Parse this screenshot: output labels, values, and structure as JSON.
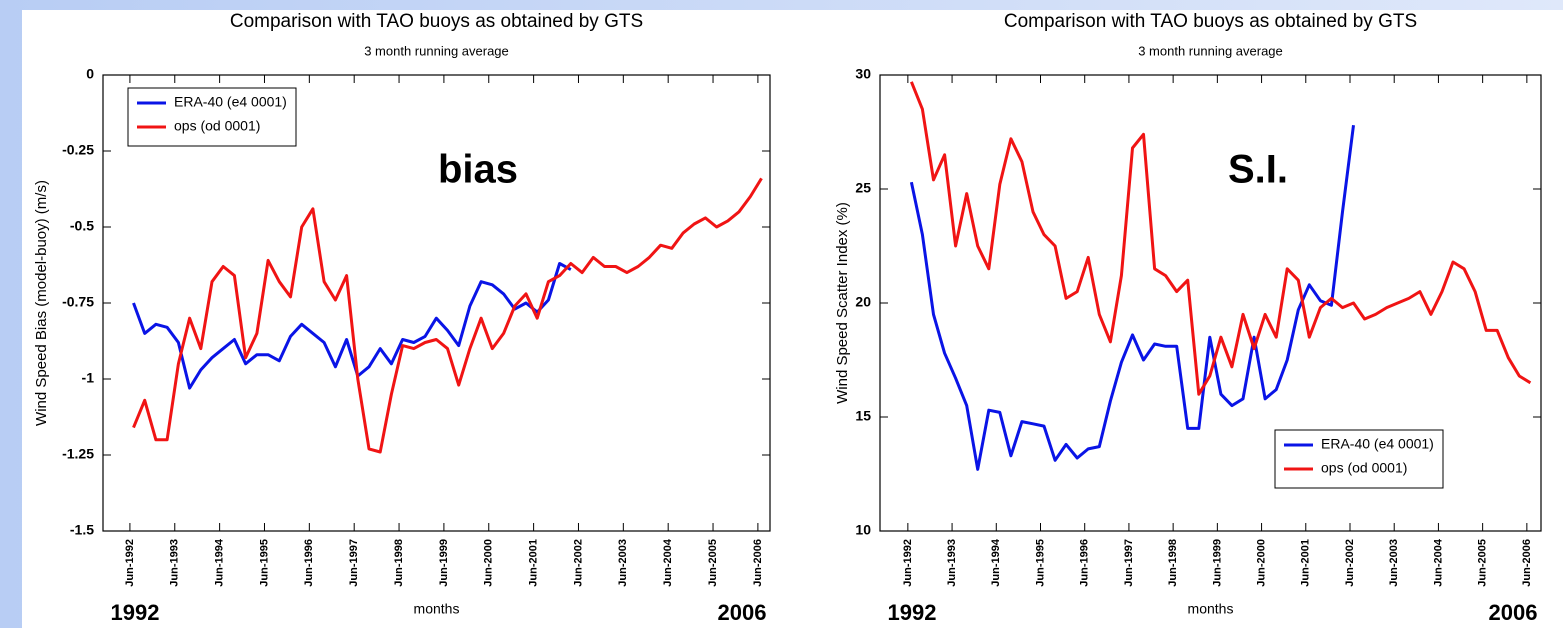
{
  "chart_data": [
    {
      "type": "line",
      "title": "Comparison with TAO buoys as obtained by GTS",
      "subtitle": "3 month running average",
      "y_label": "Wind Speed Bias (model-buoy) (m/s)",
      "x_label": "months",
      "annotation": "bias",
      "range_labels": [
        "1992",
        "2006"
      ],
      "legend": "upper left",
      "grid": false,
      "xlim": [
        1991.82,
        2006.69
      ],
      "ylim": [
        -1.5,
        0
      ],
      "yticks": [
        -1.5,
        -1.25,
        -1,
        -0.75,
        -0.5,
        -0.25,
        0
      ],
      "xticks": [
        {
          "value": 1992.42,
          "label": "Jun-1992"
        },
        {
          "value": 1993.42,
          "label": "Jun-1993"
        },
        {
          "value": 1994.42,
          "label": "Jun-1994"
        },
        {
          "value": 1995.42,
          "label": "Jun-1995"
        },
        {
          "value": 1996.42,
          "label": "Jun-1996"
        },
        {
          "value": 1997.42,
          "label": "Jun-1997"
        },
        {
          "value": 1998.42,
          "label": "Jun-1998"
        },
        {
          "value": 1999.42,
          "label": "Jun-1999"
        },
        {
          "value": 2000.42,
          "label": "Jun-2000"
        },
        {
          "value": 2001.42,
          "label": "Jun-2001"
        },
        {
          "value": 2002.42,
          "label": "Jun-2002"
        },
        {
          "value": 2003.42,
          "label": "Jun-2003"
        },
        {
          "value": 2004.42,
          "label": "Jun-2004"
        },
        {
          "value": 2005.42,
          "label": "Jun-2005"
        },
        {
          "value": 2006.42,
          "label": "Jun-2006"
        }
      ],
      "x": [
        1992.5,
        1992.75,
        1993,
        1993.25,
        1993.5,
        1993.75,
        1994,
        1994.25,
        1994.5,
        1994.75,
        1995,
        1995.25,
        1995.5,
        1995.75,
        1996,
        1996.25,
        1996.5,
        1996.75,
        1997,
        1997.25,
        1997.5,
        1997.75,
        1998,
        1998.25,
        1998.5,
        1998.75,
        1999,
        1999.25,
        1999.5,
        1999.75,
        2000,
        2000.25,
        2000.5,
        2000.75,
        2001,
        2001.25,
        2001.5,
        2001.75,
        2002,
        2002.25,
        2002.5,
        2002.75,
        2003,
        2003.25,
        2003.5,
        2003.75,
        2004,
        2004.25,
        2004.5,
        2004.75,
        2005,
        2005.25,
        2005.5,
        2005.75,
        2006,
        2006.25,
        2006.5
      ],
      "series": [
        {
          "name": "ERA-40 (e4 0001)",
          "color": "#0a14e6",
          "values": [
            -0.75,
            -0.85,
            -0.82,
            -0.83,
            -0.88,
            -1.03,
            -0.97,
            -0.93,
            -0.9,
            -0.87,
            -0.95,
            -0.92,
            -0.92,
            -0.94,
            -0.86,
            -0.82,
            -0.85,
            -0.88,
            -0.96,
            -0.87,
            -0.99,
            -0.96,
            -0.9,
            -0.95,
            -0.87,
            -0.88,
            -0.86,
            -0.8,
            -0.84,
            -0.89,
            -0.76,
            -0.68,
            -0.69,
            -0.72,
            -0.77,
            -0.75,
            -0.78,
            -0.74,
            -0.62,
            -0.64,
            null,
            null,
            null,
            null,
            null,
            null,
            null,
            null,
            null,
            null,
            null,
            null,
            null,
            null,
            null,
            null,
            null
          ]
        },
        {
          "name": "ops (od 0001)",
          "color": "#f01414",
          "values": [
            -1.16,
            -1.07,
            -1.2,
            -1.2,
            -0.95,
            -0.8,
            -0.9,
            -0.68,
            -0.63,
            -0.66,
            -0.93,
            -0.85,
            -0.61,
            -0.68,
            -0.73,
            -0.5,
            -0.44,
            -0.68,
            -0.74,
            -0.66,
            -1.0,
            -1.23,
            -1.24,
            -1.05,
            -0.89,
            -0.9,
            -0.88,
            -0.87,
            -0.9,
            -1.02,
            -0.9,
            -0.8,
            -0.9,
            -0.85,
            -0.76,
            -0.72,
            -0.8,
            -0.68,
            -0.66,
            -0.62,
            -0.65,
            -0.6,
            -0.63,
            -0.63,
            -0.65,
            -0.63,
            -0.6,
            -0.56,
            -0.57,
            -0.52,
            -0.49,
            -0.47,
            -0.5,
            -0.48,
            -0.45,
            -0.4,
            -0.34
          ]
        }
      ]
    },
    {
      "type": "line",
      "title": "Comparison with TAO buoys as obtained by GTS",
      "subtitle": "3 month running average",
      "y_label": "Wind Speed Scatter Index (%)",
      "x_label": "months",
      "annotation": "S.I.",
      "range_labels": [
        "1992",
        "2006"
      ],
      "legend": "lower right",
      "grid": false,
      "xlim": [
        1991.79,
        2006.74
      ],
      "ylim": [
        10,
        30
      ],
      "yticks": [
        10,
        15,
        20,
        25,
        30
      ],
      "xticks": [
        {
          "value": 1992.42,
          "label": "Jun-1992"
        },
        {
          "value": 1993.42,
          "label": "Jun-1993"
        },
        {
          "value": 1994.42,
          "label": "Jun-1994"
        },
        {
          "value": 1995.42,
          "label": "Jun-1995"
        },
        {
          "value": 1996.42,
          "label": "Jun-1996"
        },
        {
          "value": 1997.42,
          "label": "Jun-1997"
        },
        {
          "value": 1998.42,
          "label": "Jun-1998"
        },
        {
          "value": 1999.42,
          "label": "Jun-1999"
        },
        {
          "value": 2000.42,
          "label": "Jun-2000"
        },
        {
          "value": 2001.42,
          "label": "Jun-2001"
        },
        {
          "value": 2002.42,
          "label": "Jun-2002"
        },
        {
          "value": 2003.42,
          "label": "Jun-2003"
        },
        {
          "value": 2004.42,
          "label": "Jun-2004"
        },
        {
          "value": 2005.42,
          "label": "Jun-2005"
        },
        {
          "value": 2006.42,
          "label": "Jun-2006"
        }
      ],
      "x": [
        1992.5,
        1992.75,
        1993,
        1993.25,
        1993.5,
        1993.75,
        1994,
        1994.25,
        1994.5,
        1994.75,
        1995,
        1995.25,
        1995.5,
        1995.75,
        1996,
        1996.25,
        1996.5,
        1996.75,
        1997,
        1997.25,
        1997.5,
        1997.75,
        1998,
        1998.25,
        1998.5,
        1998.75,
        1999,
        1999.25,
        1999.5,
        1999.75,
        2000,
        2000.25,
        2000.5,
        2000.75,
        2001,
        2001.25,
        2001.5,
        2001.75,
        2002,
        2002.25,
        2002.5,
        2002.75,
        2003,
        2003.25,
        2003.5,
        2003.75,
        2004,
        2004.25,
        2004.5,
        2004.75,
        2005,
        2005.25,
        2005.5,
        2005.75,
        2006,
        2006.25,
        2006.5
      ],
      "series": [
        {
          "name": "ERA-40 (e4 0001)",
          "color": "#0a14e6",
          "values": [
            25.3,
            23,
            19.5,
            17.8,
            16.7,
            15.5,
            12.7,
            15.3,
            15.2,
            13.3,
            14.8,
            14.7,
            14.6,
            13.1,
            13.8,
            13.2,
            13.6,
            13.7,
            15.7,
            17.4,
            18.6,
            17.5,
            18.2,
            18.1,
            18.1,
            14.5,
            14.5,
            18.5,
            16,
            15.5,
            15.8,
            18.5,
            15.8,
            16.2,
            17.5,
            19.7,
            20.8,
            20.1,
            19.9,
            24,
            27.8,
            null,
            null,
            null,
            null,
            null,
            null,
            null,
            null,
            null,
            null,
            null,
            null,
            null,
            null,
            null,
            null
          ]
        },
        {
          "name": "ops (od 0001)",
          "color": "#f01414",
          "values": [
            29.7,
            28.5,
            25.4,
            26.5,
            22.5,
            24.8,
            22.5,
            21.5,
            25.2,
            27.2,
            26.2,
            24,
            23,
            22.5,
            20.2,
            20.5,
            22,
            19.5,
            18.3,
            21.2,
            26.8,
            27.4,
            21.5,
            21.2,
            20.5,
            21,
            16,
            16.8,
            18.5,
            17.2,
            19.5,
            18,
            19.5,
            18.5,
            21.5,
            21,
            18.5,
            19.8,
            20.2,
            19.8,
            20,
            19.3,
            19.5,
            19.8,
            20,
            20.2,
            20.5,
            19.5,
            20.5,
            21.8,
            21.5,
            20.5,
            18.8,
            18.8,
            17.6,
            16.8,
            16.5
          ]
        }
      ]
    }
  ]
}
